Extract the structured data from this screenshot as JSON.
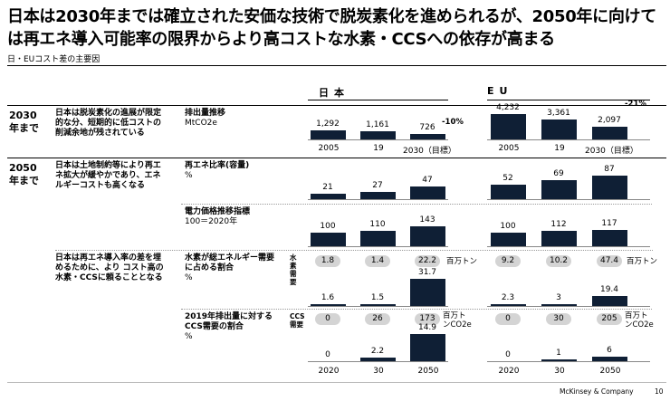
{
  "title": "日本は2030年までは確立された安価な技術で脱炭素化を進められるが、2050年に向けては再エネ導入可能率の限界からより高コストな水素・CCSへの依存が高まる",
  "subtitle": "日・EUコスト差の主要因",
  "regions": {
    "japan": "日本",
    "eu": "EU"
  },
  "rows": {
    "r2030": {
      "label": "2030年まで",
      "desc": "日本は脱炭素化の進展が限定的な分、短期的に低コストの削減余地が残されている"
    },
    "r2050a": {
      "label": "2050年まで",
      "desc": "日本は土地制約等により再エネ拡大が緩やかであり、エネルギーコストも高くなる"
    },
    "r2050b": {
      "desc": "日本は再エネ導入率の差を埋めるために、より コスト高の水素・CCSに頼ることとなる"
    }
  },
  "metrics": {
    "emissions": {
      "name": "排出量推移",
      "unit": "MtCO2e"
    },
    "renewables": {
      "name": "再エネ比率(容量)",
      "unit": "%"
    },
    "power_price": {
      "name": "電力価格推移指標",
      "unit": "100＝2020年"
    },
    "hydrogen": {
      "name": "水素が総エネルギー需要に占める割合",
      "unit": "%"
    },
    "ccs": {
      "name": "2019年排出量に対するCCS需要の割合",
      "unit": "%"
    }
  },
  "side_labels": {
    "hydrogen": "水素需要",
    "ccs": "CCS需要",
    "h2_unit": "百万トン",
    "ccs_unit": "百万トンCO2e"
  },
  "axis": {
    "top": [
      "2005",
      "19",
      "2030（目標）"
    ],
    "bottom": [
      "2020",
      "30",
      "2050"
    ]
  },
  "chart_data": {
    "type": "bar",
    "categories_emissions": [
      "2005",
      "19",
      "2030（目標）"
    ],
    "categories_2050": [
      "2020",
      "30",
      "2050"
    ],
    "series": [
      {
        "name": "日本 排出量推移",
        "values": [
          1292,
          1161,
          726
        ],
        "change": "-10%"
      },
      {
        "name": "EU 排出量推移",
        "values": [
          4232,
          3361,
          2097
        ],
        "change": "-21%"
      },
      {
        "name": "日本 再エネ比率(容量)",
        "values": [
          21,
          27,
          47
        ]
      },
      {
        "name": "EU 再エネ比率(容量)",
        "values": [
          52,
          69,
          87
        ]
      },
      {
        "name": "日本 電力価格推移指標",
        "values": [
          100,
          110,
          143
        ]
      },
      {
        "name": "EU 電力価格推移指標",
        "values": [
          100,
          112,
          117
        ]
      },
      {
        "name": "日本 水素需要",
        "values": [
          1.8,
          1.4,
          22.2
        ]
      },
      {
        "name": "EU 水素需要",
        "values": [
          9.2,
          10.2,
          47.4
        ]
      },
      {
        "name": "日本 水素が総エネルギー需要に占める割合",
        "values": [
          1.6,
          1.5,
          31.7
        ]
      },
      {
        "name": "EU 水素が総エネルギー需要に占める割合",
        "values": [
          2.3,
          3.0,
          19.4
        ]
      },
      {
        "name": "日本 CCS需要",
        "values": [
          0,
          26,
          173
        ]
      },
      {
        "name": "EU CCS需要",
        "values": [
          0,
          30,
          205
        ]
      },
      {
        "name": "日本 2019年排出量に対するCCS需要の割合",
        "values": [
          0,
          2.2,
          14.9
        ]
      },
      {
        "name": "EU 2019年排出量に対するCCS需要の割合",
        "values": [
          0,
          1,
          6
        ]
      }
    ]
  },
  "footer": {
    "company": "McKinsey & Company",
    "page": "10"
  }
}
